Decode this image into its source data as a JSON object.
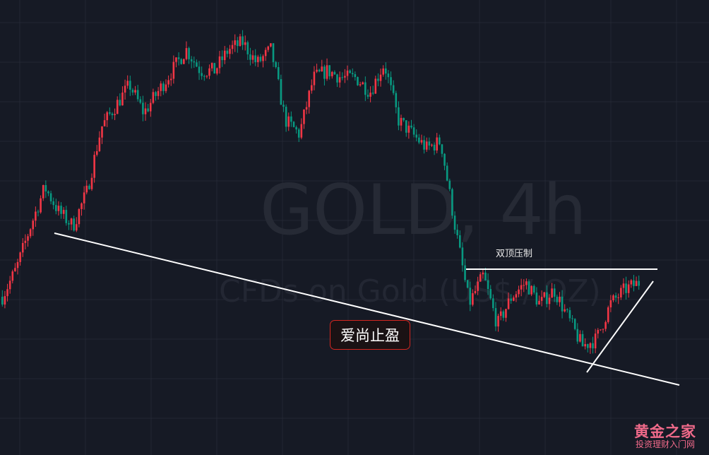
{
  "chart_data": {
    "type": "candlestick",
    "symbol_watermark": "GOLD, 4h",
    "description_watermark": "CFDs on Gold (US$ / OZ)",
    "grid": true,
    "axes_visible": false,
    "up_color": "#f23645",
    "down_color": "#089981",
    "background": "#161a25",
    "approx_close_path_index": [
      180,
      220,
      280,
      335,
      300,
      280,
      330,
      420,
      450,
      480,
      440,
      470,
      500,
      530,
      500,
      500,
      530,
      540,
      510,
      530,
      430,
      410,
      490,
      500,
      490,
      490,
      470,
      510,
      430,
      410,
      390,
      400,
      280,
      170,
      210,
      140,
      180,
      200,
      170,
      190,
      150,
      110,
      120,
      170,
      190,
      200
    ],
    "annotations": {
      "resistance_label": "双顶压制",
      "callout_label": "爱尚止盈"
    }
  },
  "logo": {
    "line1": "黄金之家",
    "line2": "投资理财入门网"
  }
}
